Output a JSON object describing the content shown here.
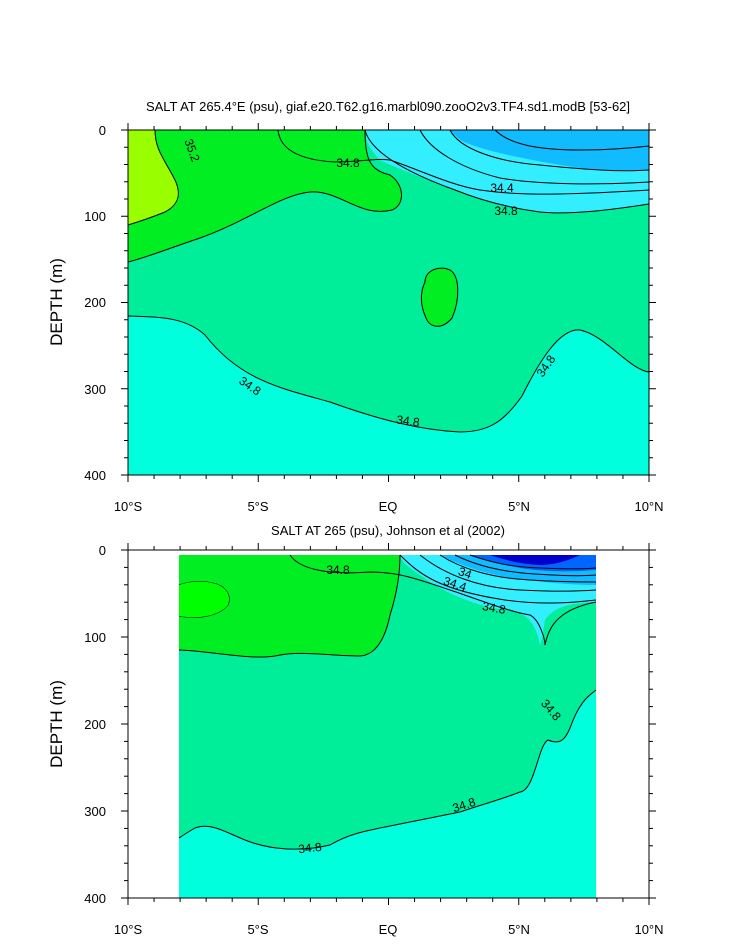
{
  "chart_data": [
    {
      "type": "contour",
      "title": "SALT AT 265.4°E (psu), giaf.e20.T62.g16.marbl090.zooO2v3.TF4.sd1.modB [53-62]",
      "ylabel": "DEPTH (m)",
      "x_ticks": [
        "10°S",
        "5°S",
        "EQ",
        "5°N",
        "10°N"
      ],
      "x_tick_values": [
        -10,
        -5,
        0,
        5,
        10
      ],
      "y_ticks": [
        "0",
        "100",
        "200",
        "300",
        "400"
      ],
      "y_tick_values": [
        0,
        100,
        200,
        300,
        400
      ],
      "xlim": [
        -10,
        10
      ],
      "ylim": [
        400,
        0
      ],
      "contour_labels": [
        "35.2",
        "34.8",
        "34.4",
        "34.8",
        "34.8",
        "34.8",
        "34.8"
      ],
      "colors": {
        "high": "#99ff00",
        "mid_high": "#00ee22",
        "mid": "#00ee99",
        "low": "#00ffdd",
        "fresh1": "#33eeff",
        "fresh2": "#11bbff"
      }
    },
    {
      "type": "contour",
      "title": "SALT AT 265 (psu), Johnson et al (2002)",
      "ylabel": "DEPTH (m)",
      "x_ticks": [
        "10°S",
        "5°S",
        "EQ",
        "5°N",
        "10°N"
      ],
      "x_tick_values": [
        -10,
        -5,
        0,
        5,
        10
      ],
      "y_ticks": [
        "0",
        "100",
        "200",
        "300",
        "400"
      ],
      "y_tick_values": [
        0,
        100,
        200,
        300,
        400
      ],
      "xlim": [
        -10,
        10
      ],
      "ylim": [
        400,
        0
      ],
      "data_xrange": [
        -8,
        8
      ],
      "contour_labels": [
        "34.8",
        "34",
        "34.4",
        "34.8",
        "34.8",
        "34.8",
        "34.8"
      ],
      "colors": {
        "mid_high": "#00ee22",
        "mid": "#00ee99",
        "low": "#00ffdd",
        "fresh1": "#33eeff",
        "deep_fresh": "#0000cc"
      }
    }
  ]
}
